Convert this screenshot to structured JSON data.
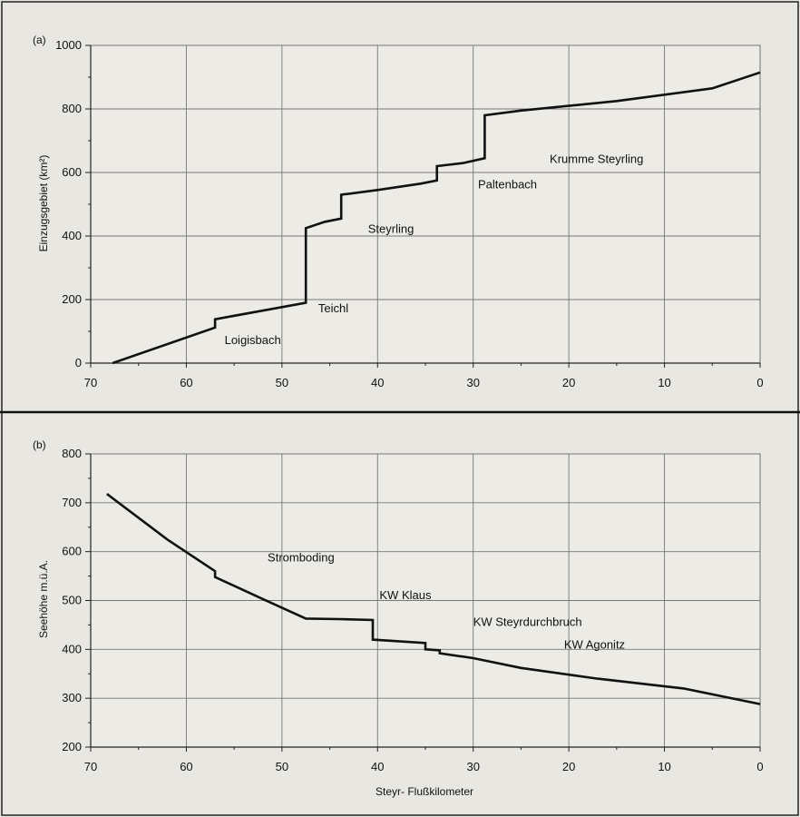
{
  "chart_data": [
    {
      "type": "line",
      "panel_label": "(a)",
      "xlabel": "",
      "ylabel": "Einzugsgebiet (km²)",
      "xlim": [
        70,
        0
      ],
      "ylim": [
        0,
        1000
      ],
      "x_ticks": [
        70,
        60,
        50,
        40,
        30,
        20,
        10,
        0
      ],
      "y_ticks": [
        0,
        200,
        400,
        600,
        800,
        1000
      ],
      "grid": true,
      "series": [
        {
          "x": [
            67.7,
            57,
            57,
            47.5,
            47.5,
            45.5,
            43.8,
            43.8,
            40,
            35.5,
            33.8,
            33.8,
            31,
            28.8,
            28.8,
            25,
            15,
            5,
            0
          ],
          "y": [
            0,
            112,
            138,
            190,
            425,
            445,
            455,
            530,
            545,
            565,
            575,
            620,
            630,
            645,
            780,
            795,
            825,
            865,
            915
          ]
        }
      ],
      "annotations": [
        {
          "text": "Loigisbach",
          "x": 56,
          "y": 60
        },
        {
          "text": "Teichl",
          "x": 46.2,
          "y": 160
        },
        {
          "text": "Steyrling",
          "x": 41,
          "y": 410
        },
        {
          "text": "Paltenbach",
          "x": 29.5,
          "y": 550
        },
        {
          "text": "Krumme Steyrling",
          "x": 22,
          "y": 630
        }
      ]
    },
    {
      "type": "line",
      "panel_label": "(b)",
      "xlabel": "Steyr- Flußkilometer",
      "ylabel": "Seehöhe m.ü.A.",
      "xlim": [
        70,
        0
      ],
      "ylim": [
        200,
        800
      ],
      "x_ticks": [
        70,
        60,
        50,
        40,
        30,
        20,
        10,
        0
      ],
      "y_ticks": [
        200,
        300,
        400,
        500,
        600,
        700,
        800
      ],
      "grid": true,
      "series": [
        {
          "x": [
            68.3,
            62,
            57,
            57,
            52,
            47.5,
            44,
            40.5,
            40.5,
            35,
            35,
            33.5,
            33.5,
            30,
            25,
            17,
            8,
            0
          ],
          "y": [
            718,
            625,
            560,
            548,
            503,
            463,
            462,
            460,
            420,
            413,
            400,
            398,
            392,
            382,
            362,
            340,
            320,
            288
          ]
        }
      ],
      "annotations": [
        {
          "text": "Stromboding",
          "x": 51.5,
          "y": 580
        },
        {
          "text": "KW Klaus",
          "x": 39.8,
          "y": 503
        },
        {
          "text": "KW Steyrdurchbruch",
          "x": 30,
          "y": 448
        },
        {
          "text": "KW Agonitz",
          "x": 20.5,
          "y": 402
        }
      ]
    }
  ]
}
